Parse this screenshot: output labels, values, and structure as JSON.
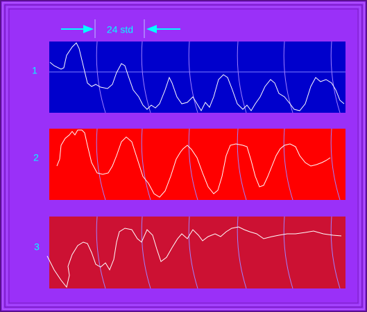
{
  "header": {
    "label": "24 std"
  },
  "panels": [
    {
      "label": "1"
    },
    {
      "label": "2"
    },
    {
      "label": "3"
    }
  ]
}
